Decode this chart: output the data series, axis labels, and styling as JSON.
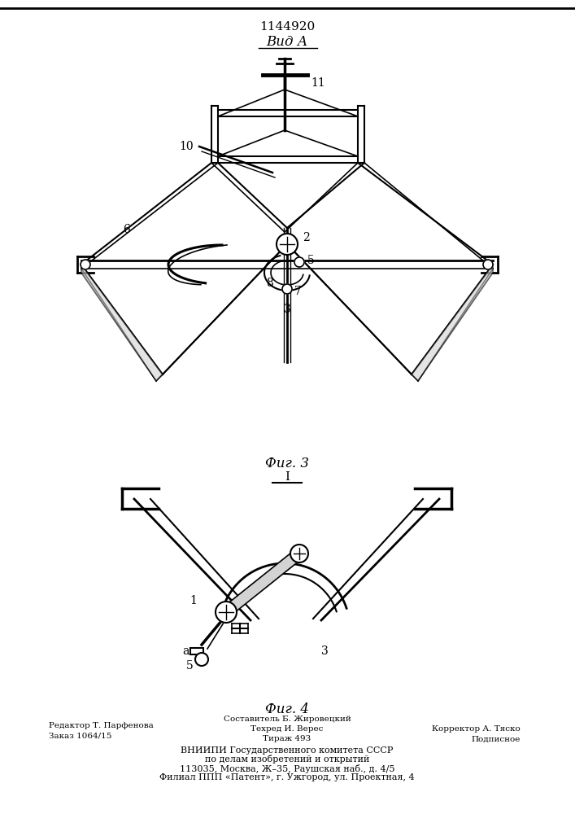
{
  "title": "1144920",
  "view_label": "Вид А",
  "fig3_label": "Фиг. 3",
  "fig4_label": "Фиг. 4",
  "arrow_label": "I",
  "footer_line1_left": "Редактор Т. Парфенова",
  "footer_line2_left": "Заказ 1064/15",
  "footer_line1_center": "Составитель Б. Жировецкий",
  "footer_line2_center": "Техред И. Верес",
  "footer_line3_center": "Тираж 493",
  "footer_line1_right": "Корректор А. Тяско",
  "footer_line2_right": "Подписное",
  "footer_vniiipi1": "ВНИИПИ Государственного комитета СССР",
  "footer_vniiipi2": "по делам изобретений и открытий",
  "footer_vniiipi3": "113035, Москва, Ж–35, Раушская наб., д. 4/5",
  "footer_vniiipi4": "Филиал ППП «Патент», г. Ужгород, ул. Проектная, 4",
  "bg_color": "#ffffff",
  "line_color": "#000000"
}
